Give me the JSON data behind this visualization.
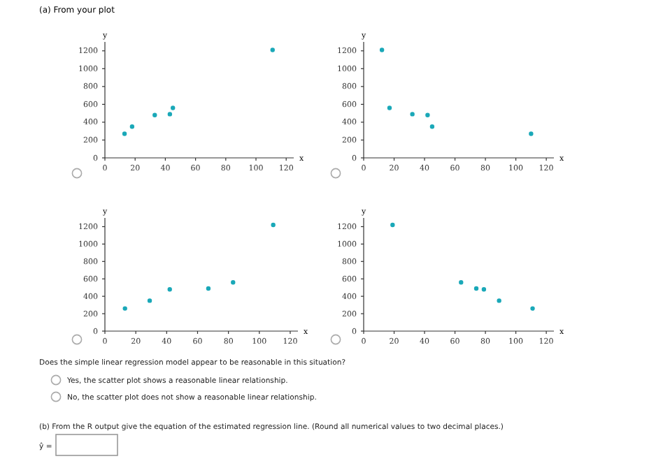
{
  "chart_data": [
    {
      "type": "scatter",
      "title": "(a) From your plot",
      "xlabel": "x",
      "ylabel": "y",
      "x": [
        13,
        18,
        33,
        43,
        45,
        111
      ],
      "values": [
        270,
        350,
        480,
        490,
        560,
        1210
      ],
      "color": "#1aa8b8",
      "marker": "circle",
      "xlim": [
        0,
        125
      ],
      "ylim": [
        0,
        1300
      ],
      "xticks": [
        0,
        20,
        40,
        60,
        80,
        100,
        120
      ],
      "yticks": [
        0,
        200,
        400,
        600,
        800,
        1000,
        1200
      ],
      "grid": false
    },
    {
      "type": "scatter",
      "xlabel": "x",
      "ylabel": "y",
      "x": [
        12,
        17,
        32,
        42,
        45,
        110
      ],
      "values": [
        1210,
        560,
        490,
        480,
        350,
        270
      ],
      "color": "#1aa8b8",
      "marker": "circle",
      "xlim": [
        0,
        125
      ],
      "ylim": [
        0,
        1300
      ],
      "xticks": [
        0,
        20,
        40,
        60,
        80,
        100,
        120
      ],
      "yticks": [
        0,
        200,
        400,
        600,
        800,
        1000,
        1200
      ],
      "grid": false
    },
    {
      "type": "scatter",
      "xlabel": "x",
      "ylabel": "y",
      "x": [
        13,
        29,
        42,
        67,
        83,
        109
      ],
      "values": [
        260,
        350,
        480,
        490,
        560,
        1220
      ],
      "color": "#1aa8b8",
      "marker": "circle",
      "xlim": [
        0,
        125
      ],
      "ylim": [
        0,
        1300
      ],
      "xticks": [
        0,
        20,
        40,
        60,
        80,
        100,
        120
      ],
      "yticks": [
        0,
        200,
        400,
        600,
        800,
        1000,
        1200
      ],
      "grid": false
    },
    {
      "type": "scatter",
      "xlabel": "x",
      "ylabel": "y",
      "x": [
        19,
        64,
        74,
        79,
        89,
        111
      ],
      "values": [
        1220,
        560,
        490,
        480,
        350,
        260
      ],
      "color": "#1aa8b8",
      "marker": "circle",
      "xlim": [
        0,
        125
      ],
      "ylim": [
        0,
        1300
      ],
      "xticks": [
        0,
        20,
        40,
        60,
        80,
        100,
        120
      ],
      "yticks": [
        0,
        200,
        400,
        600,
        800,
        1000,
        1200
      ],
      "grid": false,
      "annotations": [
        "Does the simple linear regression model appear to be reasonable in this situation?",
        "Yes, the scatter plot shows a reasonable linear relationship.",
        "No, the scatter plot does not show a reasonable linear relationship.",
        "(b) From the R output give the equation of the estimated regression line. (Round all numerical values to two decimal places.)",
        "ŷ ="
      ]
    }
  ]
}
